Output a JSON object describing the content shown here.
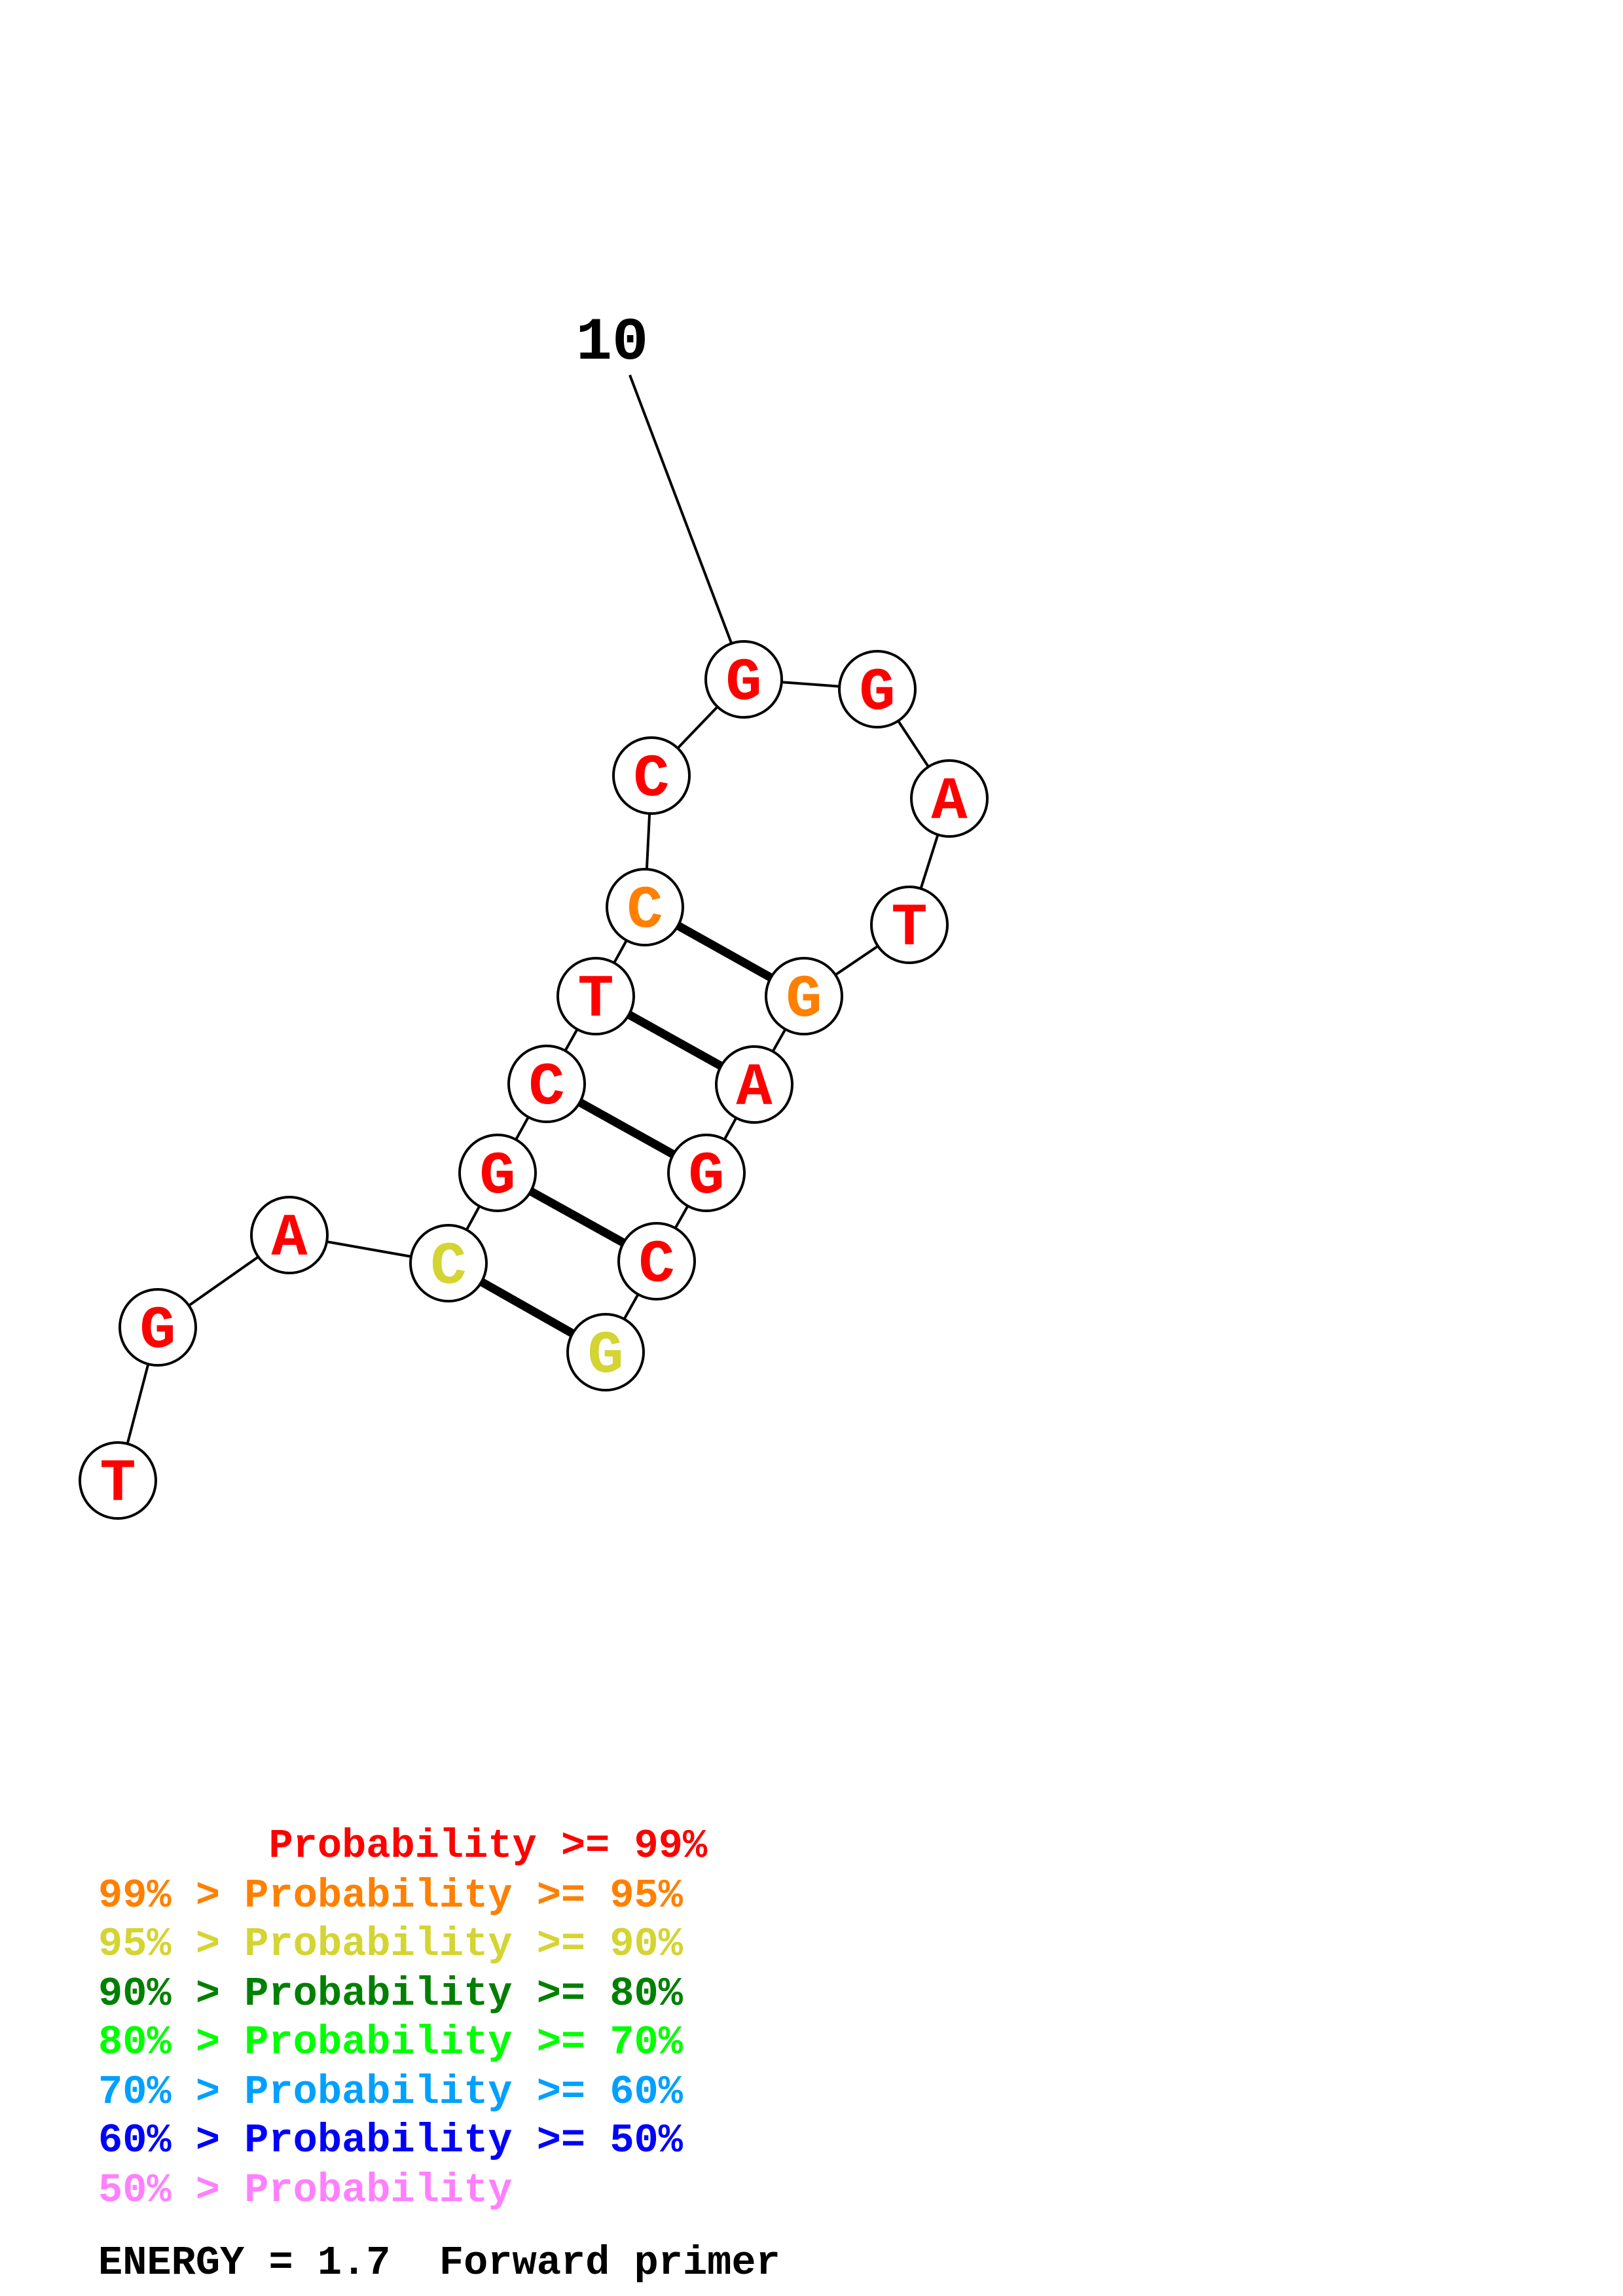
{
  "structure": {
    "position_marker": "10",
    "bases": [
      {
        "index": 1,
        "base": "T",
        "prob_class": 0
      },
      {
        "index": 2,
        "base": "G",
        "prob_class": 0
      },
      {
        "index": 3,
        "base": "A",
        "prob_class": 0
      },
      {
        "index": 4,
        "base": "C",
        "prob_class": 2
      },
      {
        "index": 5,
        "base": "G",
        "prob_class": 0
      },
      {
        "index": 6,
        "base": "C",
        "prob_class": 0
      },
      {
        "index": 7,
        "base": "T",
        "prob_class": 0
      },
      {
        "index": 8,
        "base": "C",
        "prob_class": 1
      },
      {
        "index": 9,
        "base": "C",
        "prob_class": 0
      },
      {
        "index": 10,
        "base": "G",
        "prob_class": 0
      },
      {
        "index": 11,
        "base": "G",
        "prob_class": 0
      },
      {
        "index": 12,
        "base": "A",
        "prob_class": 0
      },
      {
        "index": 13,
        "base": "T",
        "prob_class": 0
      },
      {
        "index": 14,
        "base": "G",
        "prob_class": 1
      },
      {
        "index": 15,
        "base": "A",
        "prob_class": 0
      },
      {
        "index": 16,
        "base": "G",
        "prob_class": 0
      },
      {
        "index": 17,
        "base": "C",
        "prob_class": 0
      },
      {
        "index": 18,
        "base": "G",
        "prob_class": 2
      }
    ],
    "pairs": [
      [
        4,
        18
      ],
      [
        5,
        17
      ],
      [
        6,
        16
      ],
      [
        7,
        15
      ],
      [
        8,
        14
      ]
    ],
    "colors": {
      "outline": "#000000",
      "node_fill": "#ffffff"
    }
  },
  "legend": [
    {
      "prefix": "       ",
      "label": "Probability >= 99%",
      "color": "#ff0000"
    },
    {
      "prefix": "99% > ",
      "label": "Probability >= 95%",
      "color": "#ff8000"
    },
    {
      "prefix": "95% > ",
      "label": "Probability >= 90%",
      "color": "#d4d432"
    },
    {
      "prefix": "90% > ",
      "label": "Probability >= 80%",
      "color": "#008000"
    },
    {
      "prefix": "80% > ",
      "label": "Probability >= 70%",
      "color": "#00ff00"
    },
    {
      "prefix": "70% > ",
      "label": "Probability >= 60%",
      "color": "#00a0ff"
    },
    {
      "prefix": "60% > ",
      "label": "Probability >= 50%",
      "color": "#0000ff"
    },
    {
      "prefix": "50% > ",
      "label": "Probability",
      "color": "#ff80ff"
    }
  ],
  "footer": {
    "energy_text": "ENERGY = 1.7  Forward primer"
  }
}
